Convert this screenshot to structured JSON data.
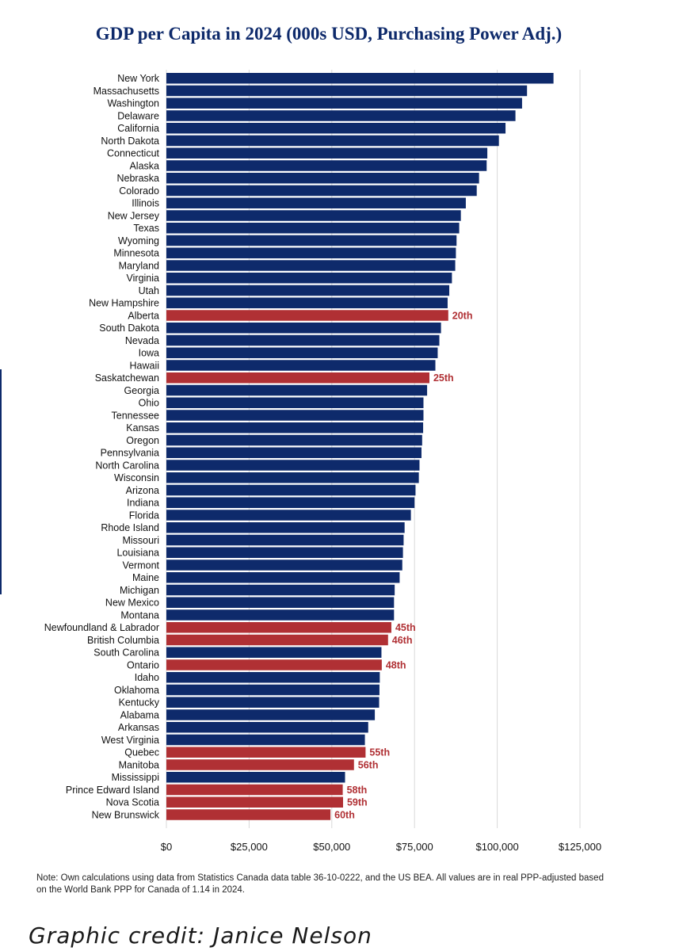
{
  "chart_data": {
    "type": "bar",
    "orientation": "horizontal",
    "title": "GDP per Capita in 2024 (000s USD, Purchasing Power Adj.)",
    "categories": [
      "New York",
      "Massachusetts",
      "Washington",
      "Delaware",
      "California",
      "North Dakota",
      "Connecticut",
      "Alaska",
      "Nebraska",
      "Colorado",
      "Illinois",
      "New Jersey",
      "Texas",
      "Wyoming",
      "Minnesota",
      "Maryland",
      "Virginia",
      "Utah",
      "New Hampshire",
      "Alberta",
      "South Dakota",
      "Nevada",
      "Iowa",
      "Hawaii",
      "Saskatchewan",
      "Georgia",
      "Ohio",
      "Tennessee",
      "Kansas",
      "Oregon",
      "Pennsylvania",
      "North Carolina",
      "Wisconsin",
      "Arizona",
      "Indiana",
      "Florida",
      "Rhode Island",
      "Missouri",
      "Louisiana",
      "Vermont",
      "Maine",
      "Michigan",
      "New Mexico",
      "Montana",
      "Newfoundland & Labrador",
      "British Columbia",
      "South Carolina",
      "Ontario",
      "Idaho",
      "Oklahoma",
      "Kentucky",
      "Alabama",
      "Arkansas",
      "West Virginia",
      "Quebec",
      "Manitoba",
      "Mississippi",
      "Prince Edward Island",
      "Nova Scotia",
      "New Brunswick"
    ],
    "values": [
      117000,
      109000,
      107500,
      105500,
      102500,
      100500,
      97000,
      96800,
      94500,
      93800,
      90500,
      89000,
      88500,
      87700,
      87500,
      87300,
      86300,
      85500,
      85000,
      85200,
      83000,
      82500,
      82000,
      81300,
      79500,
      78800,
      77700,
      77700,
      77600,
      77300,
      77100,
      76500,
      76300,
      75300,
      75000,
      73900,
      72000,
      71700,
      71500,
      71300,
      70500,
      69000,
      68800,
      68800,
      68000,
      67000,
      65000,
      65100,
      64500,
      64400,
      64300,
      63000,
      61000,
      60000,
      60200,
      56700,
      54000,
      53300,
      53400,
      49600
    ],
    "highlight": [
      false,
      false,
      false,
      false,
      false,
      false,
      false,
      false,
      false,
      false,
      false,
      false,
      false,
      false,
      false,
      false,
      false,
      false,
      false,
      true,
      false,
      false,
      false,
      false,
      true,
      false,
      false,
      false,
      false,
      false,
      false,
      false,
      false,
      false,
      false,
      false,
      false,
      false,
      false,
      false,
      false,
      false,
      false,
      false,
      true,
      true,
      false,
      true,
      false,
      false,
      false,
      false,
      false,
      false,
      true,
      true,
      false,
      true,
      true,
      true
    ],
    "rank_labels": [
      "",
      "",
      "",
      "",
      "",
      "",
      "",
      "",
      "",
      "",
      "",
      "",
      "",
      "",
      "",
      "",
      "",
      "",
      "",
      "20th",
      "",
      "",
      "",
      "",
      "25th",
      "",
      "",
      "",
      "",
      "",
      "",
      "",
      "",
      "",
      "",
      "",
      "",
      "",
      "",
      "",
      "",
      "",
      "",
      "",
      "45th",
      "46th",
      "",
      "48th",
      "",
      "",
      "",
      "",
      "",
      "",
      "55th",
      "56th",
      "",
      "58th",
      "59th",
      "60th"
    ],
    "xlim": [
      0,
      125000
    ],
    "xticks": [
      0,
      25000,
      50000,
      75000,
      100000,
      125000
    ],
    "xtick_labels": [
      "$0",
      "$25,000",
      "$50,000",
      "$75,000",
      "$100,000",
      "$125,000"
    ],
    "grid": true,
    "colors": {
      "us": "#0e2a6b",
      "canada": "#b03034",
      "grid": "#d9d9d9"
    }
  },
  "note": "Note: Own calculations using data from Statistics Canada data table 36-10-0222, and the US BEA. All values are in real PPP-adjusted based on the World Bank PPP for Canada of 1.14 in 2024.",
  "credit": "Graphic credit: Janice Nelson"
}
